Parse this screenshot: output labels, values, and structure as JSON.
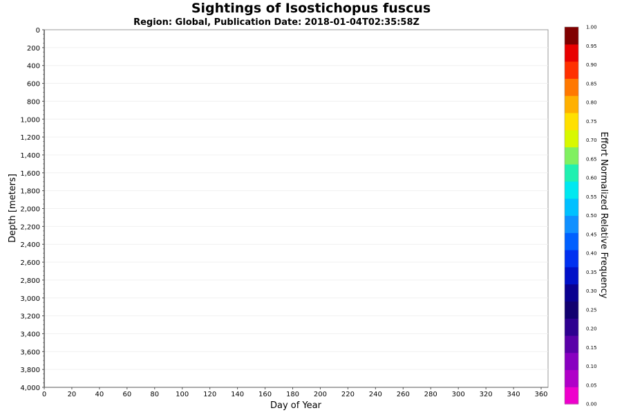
{
  "chart_data": {
    "type": "heatmap",
    "title": "Sightings of Isostichopus fuscus",
    "subtitle": "Region: Global, Publication Date: 2018-01-04T02:35:58Z",
    "xlabel": "Day of Year",
    "ylabel": "Depth [meters]",
    "xlim": [
      0,
      365
    ],
    "ylim": [
      0,
      4000
    ],
    "y_inverted": true,
    "x_ticks": [
      0,
      20,
      40,
      60,
      80,
      100,
      120,
      140,
      160,
      180,
      200,
      220,
      240,
      260,
      280,
      300,
      320,
      340,
      360
    ],
    "x_tick_labels": [
      "0",
      "20",
      "40",
      "60",
      "80",
      "100",
      "120",
      "140",
      "160",
      "180",
      "200",
      "220",
      "240",
      "260",
      "280",
      "300",
      "320",
      "340",
      "360"
    ],
    "y_ticks": [
      0,
      200,
      400,
      600,
      800,
      1000,
      1200,
      1400,
      1600,
      1800,
      2000,
      2200,
      2400,
      2600,
      2800,
      3000,
      3200,
      3400,
      3600,
      3800,
      4000
    ],
    "y_tick_labels": [
      "0",
      "200",
      "400",
      "600",
      "800",
      "1,000",
      "1,200",
      "1,400",
      "1,600",
      "1,800",
      "2,000",
      "2,200",
      "2,400",
      "2,600",
      "2,800",
      "3,000",
      "3,200",
      "3,400",
      "3,600",
      "3,800",
      "4,000"
    ],
    "cells": [],
    "grid": true,
    "colorbar": {
      "label": "Effort Normalized Relative Frequency",
      "range": [
        0,
        1
      ],
      "ticks": [
        0.0,
        0.05,
        0.1,
        0.15,
        0.2,
        0.25,
        0.3,
        0.35,
        0.4,
        0.45,
        0.5,
        0.55,
        0.6,
        0.65,
        0.7,
        0.75,
        0.8,
        0.85,
        0.9,
        0.95,
        1.0
      ],
      "tick_labels": [
        "0.00",
        "0.05",
        "0.10",
        "0.15",
        "0.20",
        "0.25",
        "0.30",
        "0.35",
        "0.40",
        "0.45",
        "0.50",
        "0.55",
        "0.60",
        "0.65",
        "0.70",
        "0.75",
        "0.80",
        "0.85",
        "0.90",
        "0.95",
        "1.00"
      ],
      "colors": [
        "#ee00cc",
        "#b000c8",
        "#8800c0",
        "#5a00a8",
        "#2e0090",
        "#120070",
        "#0a0090",
        "#0010c8",
        "#0030f0",
        "#0060ff",
        "#1090ff",
        "#00c0ff",
        "#00e8f0",
        "#20f0b0",
        "#80f060",
        "#d8f800",
        "#ffe000",
        "#ffb000",
        "#ff7800",
        "#ff3000",
        "#e80000",
        "#800000"
      ]
    }
  }
}
